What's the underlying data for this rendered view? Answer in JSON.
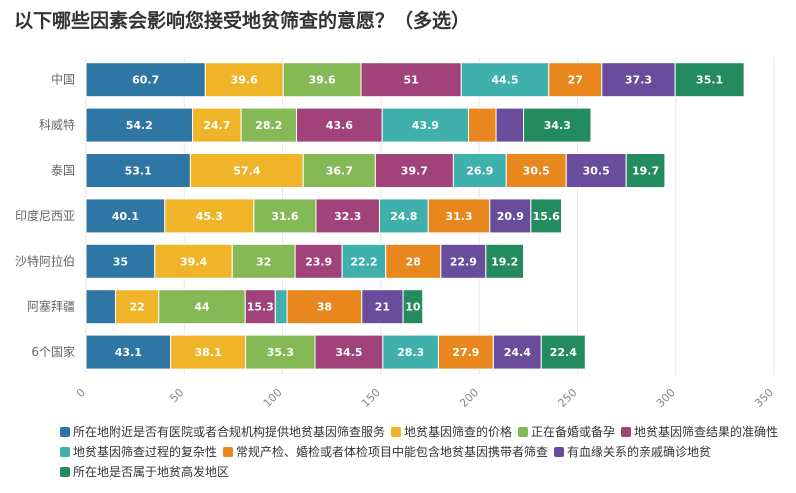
{
  "chart_data": {
    "type": "bar",
    "orientation": "horizontal",
    "stacked": true,
    "title": "以下哪些因素会影响您接受地贫筛查的意愿？（多选）",
    "categories": [
      "中国",
      "科威特",
      "泰国",
      "印度尼西亚",
      "沙特阿拉伯",
      "阿塞拜疆",
      "6个国家"
    ],
    "xlim": [
      0,
      350
    ],
    "xticks": [
      0,
      50,
      100,
      150,
      200,
      250,
      300,
      350
    ],
    "grid": true,
    "legend_position": "bottom",
    "series": [
      {
        "name": "所在地附近是否有医院或者合规机构提供地贫基因筛查服务",
        "color": "#2e76a3",
        "values": [
          60.7,
          54.2,
          53.1,
          40.1,
          35,
          15,
          43.1
        ],
        "labels": [
          "60.7",
          "54.2",
          "53.1",
          "40.1",
          "35",
          "",
          "43.1"
        ]
      },
      {
        "name": "地贫基因筛查的价格",
        "color": "#f0b429",
        "values": [
          39.6,
          24.7,
          57.4,
          45.3,
          39.4,
          22,
          38.1
        ],
        "labels": [
          "39.6",
          "24.7",
          "57.4",
          "45.3",
          "39.4",
          "22",
          "38.1"
        ]
      },
      {
        "name": "正在备婚或备孕",
        "color": "#84b956",
        "values": [
          39.6,
          28.2,
          36.7,
          31.6,
          32,
          44,
          35.3
        ],
        "labels": [
          "39.6",
          "28.2",
          "36.7",
          "31.6",
          "32",
          "44",
          "35.3"
        ]
      },
      {
        "name": "地贫基因筛查结果的准确性",
        "color": "#a2427a",
        "values": [
          51,
          43.6,
          39.7,
          32.3,
          23.9,
          15.3,
          34.5
        ],
        "labels": [
          "51",
          "43.6",
          "39.7",
          "32.3",
          "23.9",
          "15.3",
          "34.5"
        ]
      },
      {
        "name": "地贫基因筛查过程的复杂性",
        "color": "#3fb0ac",
        "values": [
          44.5,
          43.9,
          26.9,
          24.8,
          22.2,
          6,
          28.3
        ],
        "labels": [
          "44.5",
          "43.9",
          "26.9",
          "24.8",
          "22.2",
          "",
          "28.3"
        ]
      },
      {
        "name": "常规产检、婚检或者体检项目中能包含地贫基因携带者筛查",
        "color": "#e8871e",
        "values": [
          27,
          14,
          30.5,
          31.3,
          28,
          38,
          27.9
        ],
        "labels": [
          "27",
          "",
          "30.5",
          "31.3",
          "28",
          "38",
          "27.9"
        ]
      },
      {
        "name": "有血缘关系的亲戚确诊地贫",
        "color": "#6a4c9c",
        "values": [
          37.3,
          14,
          30.5,
          20.9,
          22.9,
          21,
          24.4
        ],
        "labels": [
          "37.3",
          "",
          "30.5",
          "20.9",
          "22.9",
          "21",
          "24.4"
        ]
      },
      {
        "name": "所在地是否属于地贫高发地区",
        "color": "#238b5e",
        "values": [
          35.1,
          34.3,
          19.7,
          15.6,
          19.2,
          10,
          22.4
        ],
        "labels": [
          "35.1",
          "34.3",
          "19.7",
          "15.6",
          "19.2",
          "10",
          "22.4"
        ]
      }
    ]
  }
}
